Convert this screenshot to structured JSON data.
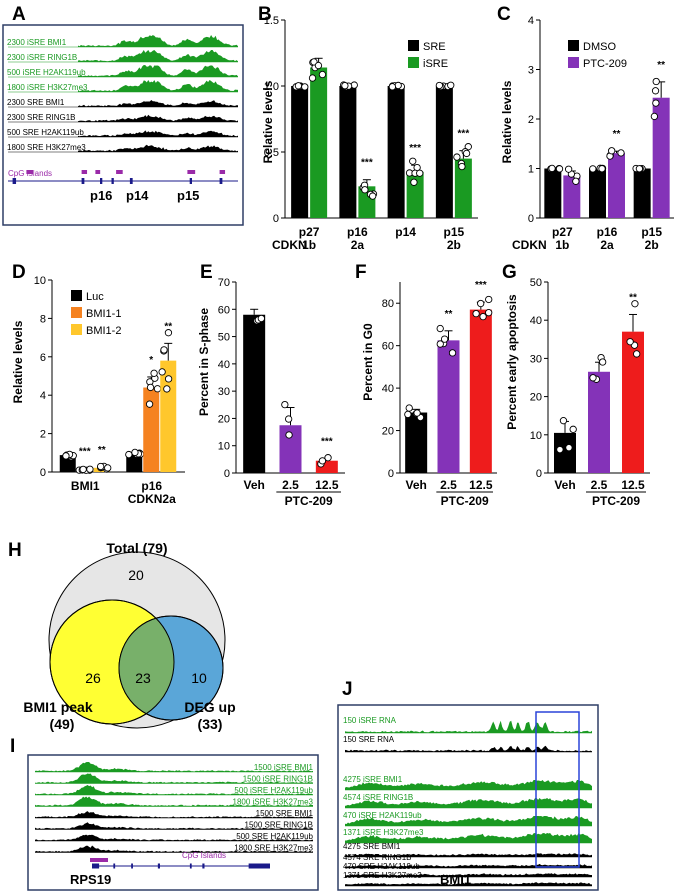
{
  "colors": {
    "green": "#1a9a22",
    "black": "#000000",
    "purple": "#8433b8",
    "orange": "#f58220",
    "yellow": "#ffc72c",
    "red": "#ee1c1c",
    "frame": "#2f3e66",
    "cpg": "#9a2aa8",
    "gene": "#1a1a8a",
    "venn_total": "#e6e6e6",
    "venn_bmi1": "#ffff33",
    "venn_deg": "#5aa6d8",
    "venn_overlap": "#78b06a",
    "jbox": "#2a44d8"
  },
  "panels": {
    "A": {
      "label": "A",
      "tracks": [
        {
          "text": "2300 iSRE BMI1",
          "color": "green"
        },
        {
          "text": "2300 iSRE RING1B",
          "color": "green"
        },
        {
          "text": "500 iSRE H2AK119ub",
          "color": "green"
        },
        {
          "text": "1800 iSRE H3K27me3",
          "color": "green"
        },
        {
          "text": "2300 SRE BMI1",
          "color": "black"
        },
        {
          "text": "2300 SRE RING1B",
          "color": "black"
        },
        {
          "text": "500 SRE H2AK119ub",
          "color": "black"
        },
        {
          "text": "1800 SRE H3K27me3",
          "color": "black"
        }
      ],
      "cpg_label": "CpG Islands",
      "genes": [
        "p16",
        "p14",
        "p15"
      ]
    },
    "I": {
      "label": "I",
      "tracks": [
        {
          "text": "1500 iSRE BMI1",
          "color": "green"
        },
        {
          "text": "1500 iSRE RING1B",
          "color": "green"
        },
        {
          "text": "500 iSRE H2AK119ub",
          "color": "green"
        },
        {
          "text": "1800 iSRE H3K27me3",
          "color": "green"
        },
        {
          "text": "1500 SRE BMI1",
          "color": "black"
        },
        {
          "text": "1500 SRE RING1B",
          "color": "black"
        },
        {
          "text": "500 SRE H2AK119ub",
          "color": "black"
        },
        {
          "text": "1800 SRE H3K27me3",
          "color": "black"
        }
      ],
      "cpg_label": "CpG Islands",
      "gene": "RPS19"
    },
    "J": {
      "label": "J",
      "tracks": [
        {
          "text": "150 iSRE RNA",
          "color": "green"
        },
        {
          "text": "150 SRE RNA",
          "color": "black"
        },
        {
          "text": "4275 iSRE BMI1",
          "color": "green"
        },
        {
          "text": "4574 iSRE RING1B",
          "color": "green"
        },
        {
          "text": "470 iSRE H2AK119ub",
          "color": "green"
        },
        {
          "text": "1371 iSRE H3K27me3",
          "color": "green"
        },
        {
          "text": "4275 SRE BMI1",
          "color": "black"
        },
        {
          "text": "4574 SRE RING1B",
          "color": "black"
        },
        {
          "text": "470 SRE H2AK119ub",
          "color": "black"
        },
        {
          "text": "1371 SRE H3K27me3",
          "color": "black"
        }
      ],
      "gene": "BMI1"
    },
    "H": {
      "label": "H",
      "total": "Total (79)",
      "only_total": "20",
      "only_bmi1": "26",
      "overlap": "23",
      "only_deg": "10",
      "bmi1_label": "BMI1 peak",
      "bmi1_count": "(49)",
      "deg_label": "DEG up",
      "deg_count": "(33)"
    }
  },
  "chart_data": [
    {
      "id": "B",
      "type": "bar",
      "label": "B",
      "ylabel": "Relative levels",
      "ylim": [
        0,
        1.5
      ],
      "yticks": [
        "0",
        "0.5",
        "1.0",
        "1.5"
      ],
      "xlabel_prefix": "CDKN",
      "categories": [
        {
          "top": "p27",
          "bottom": "1b"
        },
        {
          "top": "p16",
          "bottom": "2a"
        },
        {
          "top": "p14",
          "bottom": ""
        },
        {
          "top": "p15",
          "bottom": "2b"
        }
      ],
      "series": [
        {
          "name": "SRE",
          "color": "black",
          "values": [
            1.0,
            1.0,
            1.0,
            1.0
          ],
          "errors": [
            0,
            0,
            0,
            0
          ]
        },
        {
          "name": "iSRE",
          "color": "green",
          "values": [
            1.14,
            0.24,
            0.35,
            0.45
          ],
          "errors": [
            0.07,
            0.05,
            0.05,
            0.06
          ]
        }
      ],
      "significance": [
        "",
        "***",
        "***",
        "***"
      ]
    },
    {
      "id": "C",
      "type": "bar",
      "label": "C",
      "ylabel": "Relative levels",
      "ylim": [
        0,
        4
      ],
      "yticks": [
        "0",
        "1",
        "2",
        "3",
        "4"
      ],
      "xlabel_prefix": "CDKN",
      "categories": [
        {
          "top": "p27",
          "bottom": "1b"
        },
        {
          "top": "p16",
          "bottom": "2a"
        },
        {
          "top": "p15",
          "bottom": "2b"
        }
      ],
      "series": [
        {
          "name": "DMSO",
          "color": "black",
          "values": [
            1.0,
            1.0,
            1.0
          ],
          "errors": [
            0,
            0,
            0
          ]
        },
        {
          "name": "PTC-209",
          "color": "purple",
          "values": [
            0.86,
            1.31,
            2.43
          ],
          "errors": [
            0.09,
            0.04,
            0.32
          ]
        }
      ],
      "significance": [
        "",
        "**",
        "**"
      ]
    },
    {
      "id": "D",
      "type": "bar",
      "label": "D",
      "ylabel": "Relative levels",
      "ylim": [
        0,
        10
      ],
      "yticks": [
        "0",
        "2",
        "4",
        "6",
        "8",
        "10"
      ],
      "categories": [
        {
          "top": "BMI1",
          "bottom": ""
        },
        {
          "top": "p16",
          "bottom": "CDKN2a"
        }
      ],
      "series": [
        {
          "name": "Luc",
          "color": "black",
          "values": [
            0.88,
            0.92
          ],
          "errors": [
            0.05,
            0.06
          ]
        },
        {
          "name": "BMI1-1",
          "color": "orange",
          "values": [
            0.14,
            4.4
          ],
          "errors": [
            0.03,
            0.55
          ]
        },
        {
          "name": "BMI1-2",
          "color": "yellow",
          "values": [
            0.22,
            5.8
          ],
          "errors": [
            0.05,
            0.9
          ]
        }
      ],
      "significance": [
        [
          "",
          "***",
          "**"
        ],
        [
          "",
          "*",
          "**"
        ]
      ]
    },
    {
      "id": "E",
      "type": "bar",
      "label": "E",
      "ylabel": "Percent in S-phase",
      "ylim": [
        0,
        70
      ],
      "yticks": [
        "0",
        "10",
        "20",
        "30",
        "40",
        "50",
        "60",
        "70"
      ],
      "categories": [
        "Veh",
        "2.5",
        "12.5"
      ],
      "treatment": "PTC-209",
      "values": [
        58,
        17.5,
        4.5
      ],
      "errors": [
        2,
        6.5,
        0.8
      ],
      "colors": [
        "black",
        "purple",
        "red"
      ],
      "significance": [
        "",
        "",
        "***"
      ]
    },
    {
      "id": "F",
      "type": "bar",
      "label": "F",
      "ylabel": "Percent in G0",
      "ylim": [
        0,
        90
      ],
      "yticks": [
        "0",
        "20",
        "40",
        "60",
        "80"
      ],
      "categories": [
        "Veh",
        "2.5",
        "12.5"
      ],
      "treatment": "PTC-209",
      "values": [
        28.5,
        62.5,
        77
      ],
      "errors": [
        1.5,
        4.5,
        3.5
      ],
      "colors": [
        "black",
        "purple",
        "red"
      ],
      "significance": [
        "",
        "**",
        "***"
      ]
    },
    {
      "id": "G",
      "type": "bar",
      "label": "G",
      "ylabel": "Percent early apoptosis",
      "ylim": [
        0,
        50
      ],
      "yticks": [
        "0",
        "10",
        "20",
        "30",
        "40",
        "50"
      ],
      "categories": [
        "Veh",
        "2.5",
        "12.5"
      ],
      "treatment": "PTC-209",
      "values": [
        10.5,
        26.5,
        37
      ],
      "errors": [
        3,
        2.5,
        4.5
      ],
      "colors": [
        "black",
        "purple",
        "red"
      ],
      "significance": [
        "",
        "",
        "**"
      ]
    }
  ]
}
